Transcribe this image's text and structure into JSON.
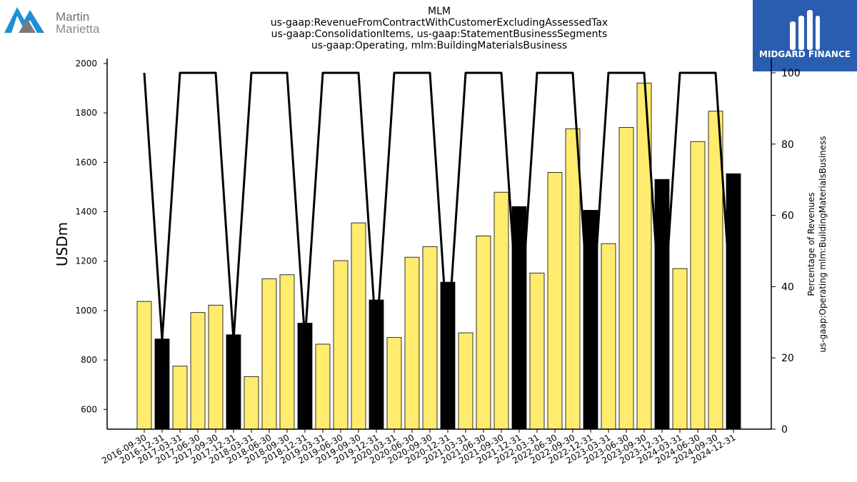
{
  "logos": {
    "left_name_line1": "Martin",
    "left_name_line2": "Marietta",
    "right_name": "MIDGARD FINANCE",
    "accent_blue": "#2a5db0",
    "martin_blue": "#1d8fd6",
    "martin_gray": "#7a7a7a"
  },
  "chart_data": {
    "type": "bar",
    "title_lines": [
      "MLM",
      "us-gaap:RevenueFromContractWithCustomerExcludingAssessedTax",
      "us-gaap:ConsolidationItems, us-gaap:StatementBusinessSegments",
      "us-gaap:Operating, mlm:BuildingMaterialsBusiness"
    ],
    "ylabel": "USDm",
    "y2label_lines": [
      "Percentage of Revenues",
      "us-gaap:Operating mlm:BuildingMaterialsBusiness"
    ],
    "ylim": [
      520,
      2020
    ],
    "y_ticks": [
      600,
      800,
      1000,
      1200,
      1400,
      1600,
      1800,
      2000
    ],
    "y2lim": [
      0,
      104
    ],
    "y2_ticks": [
      0,
      20,
      40,
      60,
      80,
      100
    ],
    "grid": false,
    "colors": {
      "quarter": "#ffec6e",
      "annual": "#000000",
      "line": "#000000"
    },
    "categories": [
      "2016-09-30",
      "2016-12-31",
      "2017-03-31",
      "2017-06-30",
      "2017-09-30",
      "2017-12-31",
      "2018-03-31",
      "2018-06-30",
      "2018-09-30",
      "2018-12-31",
      "2019-03-31",
      "2019-06-30",
      "2019-09-30",
      "2019-12-31",
      "2020-03-31",
      "2020-06-30",
      "2020-09-30",
      "2020-12-31",
      "2021-03-31",
      "2021-06-30",
      "2021-09-30",
      "2021-12-31",
      "2022-03-31",
      "2022-06-30",
      "2022-09-30",
      "2022-12-31",
      "2023-03-31",
      "2023-06-30",
      "2023-09-30",
      "2023-12-31",
      "2024-03-31",
      "2024-06-30",
      "2024-09-30",
      "2024-12-31"
    ],
    "values": [
      1037,
      885,
      775,
      992,
      1022,
      902,
      733,
      1129,
      1145,
      949,
      864,
      1202,
      1355,
      1043,
      891,
      1216,
      1259,
      1115,
      910,
      1302,
      1479,
      1421,
      1152,
      1559,
      1736,
      1406,
      1271,
      1741,
      1921,
      1531,
      1170,
      1684,
      1807,
      1554
    ],
    "bar_type": [
      "q",
      "a",
      "q",
      "q",
      "q",
      "a",
      "q",
      "q",
      "q",
      "a",
      "q",
      "q",
      "q",
      "a",
      "q",
      "q",
      "q",
      "a",
      "q",
      "q",
      "q",
      "a",
      "q",
      "q",
      "q",
      "a",
      "q",
      "q",
      "q",
      "a",
      "q",
      "q",
      "q",
      "a"
    ],
    "percentage": [
      100,
      25,
      100,
      100,
      100,
      25,
      100,
      100,
      100,
      25,
      100,
      100,
      100,
      25,
      100,
      100,
      100,
      25,
      100,
      100,
      100,
      25,
      100,
      100,
      100,
      25,
      100,
      100,
      100,
      25,
      100,
      100,
      100,
      25
    ]
  }
}
